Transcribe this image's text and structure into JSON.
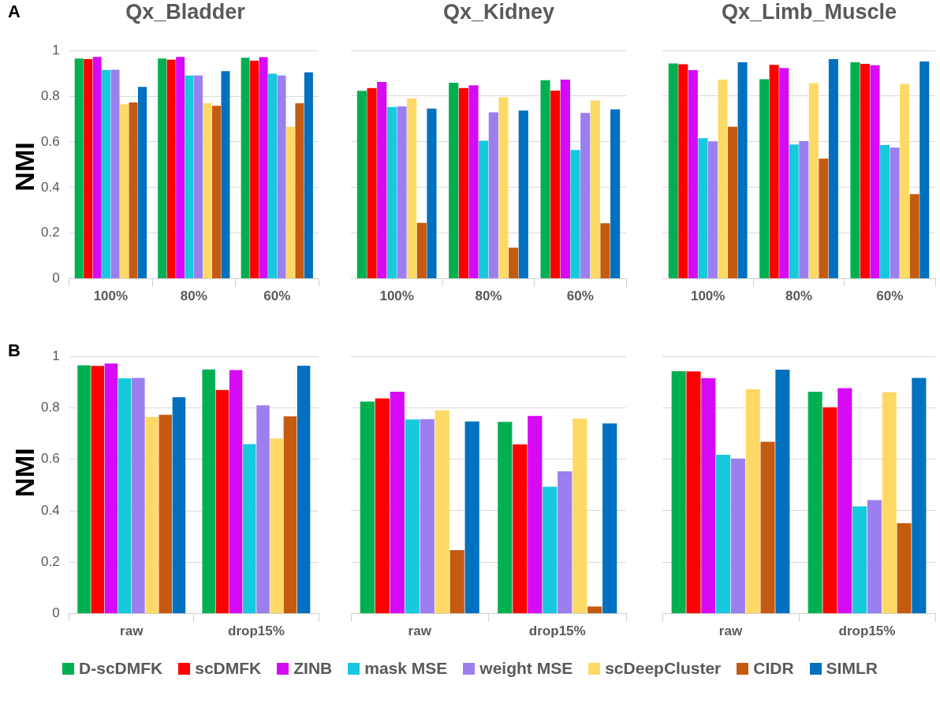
{
  "chart_data": [
    {
      "type": "bar",
      "title": "Qx_Bladder",
      "ylabel": "NMI",
      "annotations": [
        "A"
      ],
      "categories": [
        "100%",
        "80%",
        "60%"
      ],
      "ylim": [
        0,
        1
      ],
      "yticks": [
        0,
        0.2,
        0.4,
        0.6,
        0.8,
        1
      ],
      "grid": "y",
      "series": [
        {
          "color": "#00b050",
          "values": [
            0.965,
            0.965,
            0.969
          ]
        },
        {
          "color": "#ff0000",
          "values": [
            0.963,
            0.96,
            0.956
          ]
        },
        {
          "color": "#d60af5",
          "values": [
            0.972,
            0.972,
            0.971
          ]
        },
        {
          "color": "#17c9dd",
          "values": [
            0.915,
            0.891,
            0.899
          ]
        },
        {
          "color": "#9b7fef",
          "values": [
            0.916,
            0.891,
            0.891
          ]
        },
        {
          "color": "#ffd966",
          "values": [
            0.765,
            0.77,
            0.666
          ]
        },
        {
          "color": "#c55a11",
          "values": [
            0.773,
            0.758,
            0.769
          ]
        },
        {
          "color": "#0070c0",
          "values": [
            0.841,
            0.91,
            0.905
          ]
        }
      ]
    },
    {
      "type": "bar",
      "title": "Qx_Kidney",
      "categories": [
        "100%",
        "80%",
        "60%"
      ],
      "ylim": [
        0,
        1
      ],
      "yticks": [
        0,
        0.2,
        0.4,
        0.6,
        0.8,
        1
      ],
      "grid": "y",
      "tick_labels": "x",
      "series": [
        {
          "color": "#00b050",
          "values": [
            0.823,
            0.858,
            0.87
          ]
        },
        {
          "color": "#ff0000",
          "values": [
            0.835,
            0.835,
            0.824
          ]
        },
        {
          "color": "#d60af5",
          "values": [
            0.862,
            0.847,
            0.872
          ]
        },
        {
          "color": "#17c9dd",
          "values": [
            0.752,
            0.605,
            0.564
          ]
        },
        {
          "color": "#9b7fef",
          "values": [
            0.755,
            0.729,
            0.726
          ]
        },
        {
          "color": "#ffd966",
          "values": [
            0.79,
            0.795,
            0.781
          ]
        },
        {
          "color": "#c55a11",
          "values": [
            0.245,
            0.136,
            0.243
          ]
        },
        {
          "color": "#0070c0",
          "values": [
            0.745,
            0.737,
            0.742
          ]
        }
      ]
    },
    {
      "type": "bar",
      "title": "Qx_Limb_Muscle",
      "categories": [
        "100%",
        "80%",
        "60%"
      ],
      "ylim": [
        0,
        1
      ],
      "yticks": [
        0,
        0.2,
        0.4,
        0.6,
        0.8,
        1
      ],
      "grid": "y",
      "tick_labels": "x",
      "series": [
        {
          "color": "#00b050",
          "values": [
            0.943,
            0.874,
            0.948
          ]
        },
        {
          "color": "#ff0000",
          "values": [
            0.94,
            0.937,
            0.941
          ]
        },
        {
          "color": "#d60af5",
          "values": [
            0.914,
            0.923,
            0.935
          ]
        },
        {
          "color": "#17c9dd",
          "values": [
            0.616,
            0.588,
            0.586
          ]
        },
        {
          "color": "#9b7fef",
          "values": [
            0.601,
            0.603,
            0.574
          ]
        },
        {
          "color": "#ffd966",
          "values": [
            0.872,
            0.857,
            0.853
          ]
        },
        {
          "color": "#c55a11",
          "values": [
            0.666,
            0.526,
            0.371
          ]
        },
        {
          "color": "#0070c0",
          "values": [
            0.948,
            0.962,
            0.952
          ]
        }
      ]
    },
    {
      "type": "bar",
      "ylabel": "NMI",
      "annotations": [
        "B"
      ],
      "categories": [
        "raw",
        "drop15%"
      ],
      "ylim": [
        0,
        1
      ],
      "yticks": [
        0,
        0.2,
        0.4,
        0.6,
        0.8,
        1
      ],
      "grid": "y",
      "series": [
        {
          "color": "#00b050",
          "values": [
            0.965,
            0.949
          ]
        },
        {
          "color": "#ff0000",
          "values": [
            0.963,
            0.87
          ]
        },
        {
          "color": "#d60af5",
          "values": [
            0.972,
            0.947
          ]
        },
        {
          "color": "#17c9dd",
          "values": [
            0.915,
            0.659
          ]
        },
        {
          "color": "#9b7fef",
          "values": [
            0.916,
            0.81
          ]
        },
        {
          "color": "#ffd966",
          "values": [
            0.765,
            0.681
          ]
        },
        {
          "color": "#c55a11",
          "values": [
            0.773,
            0.767
          ]
        },
        {
          "color": "#0070c0",
          "values": [
            0.841,
            0.964
          ]
        }
      ]
    },
    {
      "type": "bar",
      "categories": [
        "raw",
        "drop15%"
      ],
      "ylim": [
        0,
        1
      ],
      "yticks": [
        0,
        0.2,
        0.4,
        0.6,
        0.8,
        1
      ],
      "grid": "y",
      "tick_labels": "x",
      "series": [
        {
          "color": "#00b050",
          "values": [
            0.824,
            0.745
          ]
        },
        {
          "color": "#ff0000",
          "values": [
            0.836,
            0.658
          ]
        },
        {
          "color": "#d60af5",
          "values": [
            0.862,
            0.768
          ]
        },
        {
          "color": "#17c9dd",
          "values": [
            0.754,
            0.493
          ]
        },
        {
          "color": "#9b7fef",
          "values": [
            0.756,
            0.553
          ]
        },
        {
          "color": "#ffd966",
          "values": [
            0.79,
            0.757
          ]
        },
        {
          "color": "#c55a11",
          "values": [
            0.247,
            0.028
          ]
        },
        {
          "color": "#0070c0",
          "values": [
            0.747,
            0.739
          ]
        }
      ]
    },
    {
      "type": "bar",
      "categories": [
        "raw",
        "drop15%"
      ],
      "ylim": [
        0,
        1
      ],
      "yticks": [
        0,
        0.2,
        0.4,
        0.6,
        0.8,
        1
      ],
      "grid": "y",
      "tick_labels": "x",
      "legend": "bottom",
      "series": [
        {
          "name": "D-scDMFK",
          "color": "#00b050",
          "values": [
            0.942,
            0.862
          ]
        },
        {
          "name": "scDMFK",
          "color": "#ff0000",
          "values": [
            0.941,
            0.802
          ]
        },
        {
          "name": "ZINB",
          "color": "#d60af5",
          "values": [
            0.915,
            0.876
          ]
        },
        {
          "name": "mask MSE",
          "color": "#17c9dd",
          "values": [
            0.617,
            0.417
          ]
        },
        {
          "name": "weight MSE",
          "color": "#9b7fef",
          "values": [
            0.603,
            0.441
          ]
        },
        {
          "name": "scDeepCluster",
          "color": "#ffd966",
          "values": [
            0.872,
            0.861
          ]
        },
        {
          "name": "CIDR",
          "color": "#c55a11",
          "values": [
            0.668,
            0.352
          ]
        },
        {
          "name": "SIMLR",
          "color": "#0070c0",
          "values": [
            0.948,
            0.916
          ]
        }
      ]
    }
  ]
}
